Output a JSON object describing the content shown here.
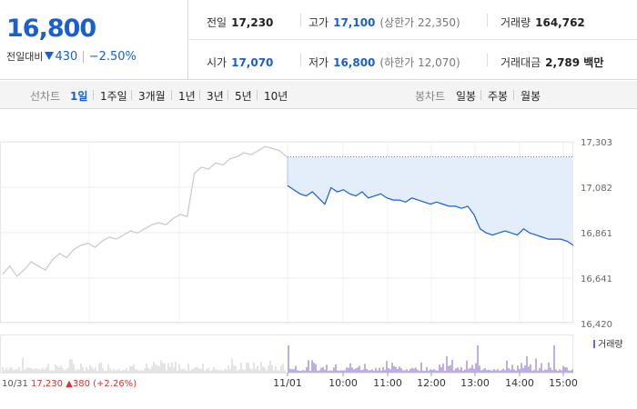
{
  "quote": {
    "current_price": "16,800",
    "change_label": "전일대비",
    "change_amount": "430",
    "change_percent": "−2.50%"
  },
  "stats": {
    "prev_close_label": "전일",
    "prev_close": "17,230",
    "high_label": "고가",
    "high": "17,100",
    "upper_limit": "(상한가 22,350)",
    "volume_label": "거래량",
    "volume": "164,762",
    "open_label": "시가",
    "open": "17,070",
    "low_label": "저가",
    "low": "16,800",
    "lower_limit": "(하한가 12,070)",
    "trade_value_label": "거래대금",
    "trade_value": "2,789 백만"
  },
  "line_tabs": {
    "label": "선차트",
    "items": [
      "1일",
      "1주일",
      "3개월",
      "1년",
      "3년",
      "5년",
      "10년"
    ],
    "active": "1일"
  },
  "candle_tabs": {
    "label": "봉차트",
    "items": [
      "일봉",
      "주봉",
      "월봉"
    ]
  },
  "chart_data": {
    "type": "line",
    "y_ticks": [
      "17,303",
      "17,082",
      "16,861",
      "16,641",
      "16,420"
    ],
    "ylim": [
      16420,
      17303
    ],
    "x_ticks": [
      "11/01",
      "10:00",
      "11:00",
      "12:00",
      "13:00",
      "14:00",
      "15:00"
    ],
    "volume_legend": "거래량",
    "prev_day_annotation": {
      "date": "10/31",
      "price": "17,230",
      "arrow": "▲",
      "change": "380",
      "percent": "(+2.26%)"
    },
    "colors": {
      "today_line": "#1a5fd0",
      "prev_line": "#c8c8c8",
      "fill": "#e4eefb",
      "volume_today": "#7b5ec7",
      "volume_prev": "#c8c8c8",
      "up": "#e03030"
    },
    "prev_day_series": [
      16660,
      16700,
      16650,
      16680,
      16720,
      16700,
      16680,
      16730,
      16760,
      16740,
      16780,
      16800,
      16810,
      16790,
      16820,
      16840,
      16830,
      16850,
      16870,
      16860,
      16880,
      16900,
      16910,
      16900,
      16930,
      16950,
      16940,
      17150,
      17180,
      17170,
      17200,
      17190,
      17220,
      17230,
      17250,
      17240,
      17260,
      17280,
      17270,
      17260,
      17230
    ],
    "today_series": [
      17090,
      17070,
      17050,
      17040,
      17060,
      17030,
      17000,
      17080,
      17060,
      17070,
      17050,
      17040,
      17060,
      17030,
      17040,
      17050,
      17030,
      17020,
      17020,
      17010,
      17030,
      17020,
      17010,
      17000,
      17010,
      17000,
      16990,
      16990,
      16980,
      16990,
      16950,
      16880,
      16860,
      16850,
      16860,
      16870,
      16860,
      16850,
      16880,
      16860,
      16850,
      16840,
      16830,
      16830,
      16830,
      16820,
      16800
    ]
  }
}
